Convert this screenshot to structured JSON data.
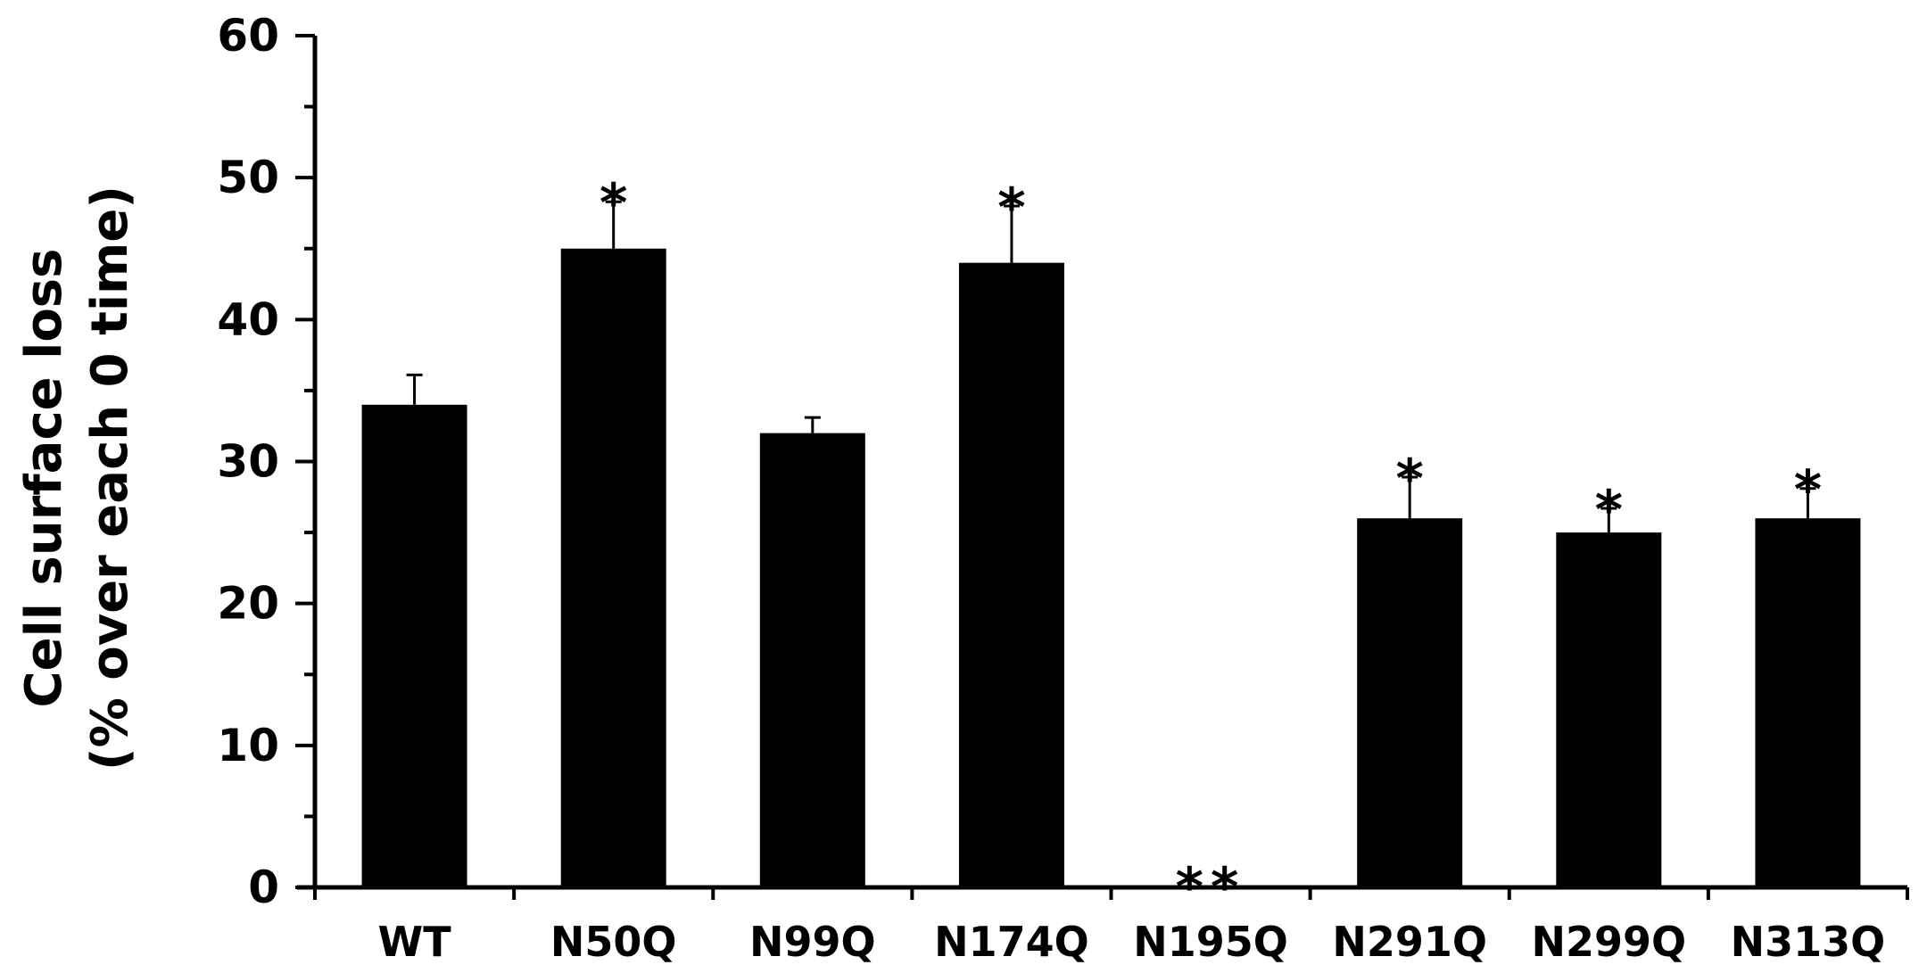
{
  "chart_data": {
    "type": "bar",
    "ylabel": "Cell surface loss",
    "ylabel_sub": "(% over each 0 time)",
    "xlabel": "",
    "ylim": [
      0,
      60
    ],
    "yticks": [
      0,
      10,
      20,
      30,
      40,
      50,
      60
    ],
    "ytick_labels": [
      "0",
      "10",
      "20",
      "30",
      "40",
      "50",
      "60"
    ],
    "categories": [
      "WT",
      "N50Q",
      "N99Q",
      "N174Q",
      "N195Q",
      "N291Q",
      "N299Q",
      "N313Q"
    ],
    "values": [
      34,
      45,
      32,
      44,
      0,
      26,
      25,
      26
    ],
    "errors": [
      2.1,
      3.3,
      1.1,
      4.0,
      0,
      2.9,
      1.7,
      2.1
    ],
    "significance": [
      "",
      "*",
      "",
      "*",
      "**",
      "*",
      "*",
      "*"
    ],
    "bar_color": "#000000",
    "grid": false,
    "legend": "none"
  }
}
